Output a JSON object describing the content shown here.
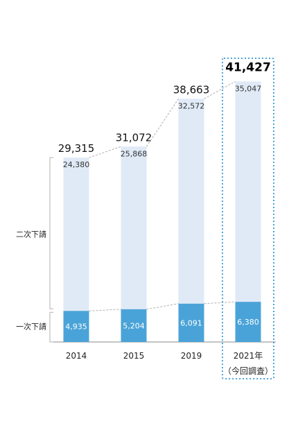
{
  "chart_data": {
    "type": "bar",
    "stacked": true,
    "categories": [
      "2014",
      "2015",
      "2019",
      "2021年"
    ],
    "category_sublabels": [
      "",
      "",
      "",
      "（今回調査）"
    ],
    "series": [
      {
        "name": "一次下請",
        "values": [
          4935,
          5204,
          6091,
          6380
        ],
        "color": "#4aa3d8",
        "label_color": "#ffffff"
      },
      {
        "name": "二次下請",
        "values": [
          24380,
          25868,
          32572,
          35047
        ],
        "color": "#dfeaf6",
        "label_color": "#333333"
      }
    ],
    "totals": [
      29315,
      31072,
      38663,
      41427
    ],
    "highlight_index": 3,
    "highlight_color": "#4aa3d8",
    "connector_color": "#b0b0b0",
    "brace_color": "#b0b0b0",
    "axis_color": "#888888",
    "ylim": [
      0,
      45000
    ]
  }
}
